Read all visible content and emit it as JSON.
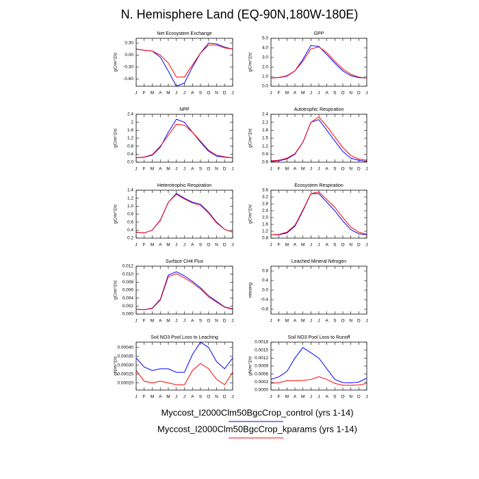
{
  "title": "N. Hemisphere Land (EQ-90N,180W-180E)",
  "chart_data": [
    {
      "type": "line",
      "title": "Net Ecosystem Exchange",
      "ylabel": "gC/m^2/d",
      "categories": [
        "J",
        "F",
        "M",
        "A",
        "M",
        "J",
        "J",
        "A",
        "S",
        "O",
        "N",
        "D",
        "J"
      ],
      "ylim": [
        -0.78,
        0.42
      ],
      "yticks": [
        {
          "value": 0.3,
          "label": "0.30"
        },
        {
          "value": 0,
          "label": "0.00"
        },
        {
          "value": -0.3,
          "label": "-0.30"
        },
        {
          "value": -0.6,
          "label": "-0.60"
        }
      ],
      "series": [
        {
          "name": "Myccost_I2000Clm50BgcCrop_control (yrs 1-14)",
          "color": "#0000ff",
          "values": [
            0.15,
            0.12,
            0.1,
            -0.05,
            -0.4,
            -0.78,
            -0.7,
            -0.3,
            0.05,
            0.3,
            0.28,
            0.2,
            0.15
          ]
        },
        {
          "name": "Myccost_I2000Clm50BgcCrop_kparams (yrs 1-14)",
          "color": "#ff0000",
          "values": [
            0.15,
            0.12,
            0.1,
            0,
            -0.2,
            -0.55,
            -0.55,
            -0.25,
            0.05,
            0.25,
            0.25,
            0.18,
            0.15
          ]
        }
      ]
    },
    {
      "type": "line",
      "title": "GPP",
      "ylabel": "gC/m^2/d",
      "categories": [
        "J",
        "F",
        "M",
        "A",
        "M",
        "J",
        "J",
        "A",
        "S",
        "O",
        "N",
        "D",
        "J"
      ],
      "ylim": [
        0,
        5
      ],
      "yticks": [
        {
          "value": 0,
          "label": "0.0"
        },
        {
          "value": 1,
          "label": "1.0"
        },
        {
          "value": 2,
          "label": "2.0"
        },
        {
          "value": 3,
          "label": "3.0"
        },
        {
          "value": 4,
          "label": "4.0"
        },
        {
          "value": 5,
          "label": "5.0"
        }
      ],
      "series": [
        {
          "name": "Myccost_I2000Clm50BgcCrop_control (yrs 1-14)",
          "color": "#0000ff",
          "values": [
            0.85,
            0.9,
            1.05,
            1.6,
            2.8,
            4.25,
            4.15,
            3.3,
            2.4,
            1.6,
            1.1,
            0.9,
            0.85
          ]
        },
        {
          "name": "Myccost_I2000Clm50BgcCrop_kparams (yrs 1-14)",
          "color": "#ff0000",
          "values": [
            0.85,
            0.92,
            1.1,
            1.6,
            2.6,
            3.9,
            4.1,
            3.5,
            2.6,
            1.8,
            1.25,
            0.95,
            0.85
          ]
        }
      ]
    },
    {
      "type": "line",
      "title": "NPP",
      "ylabel": "gC/m^2/d",
      "categories": [
        "J",
        "F",
        "M",
        "A",
        "M",
        "J",
        "J",
        "A",
        "S",
        "O",
        "N",
        "D",
        "J"
      ],
      "ylim": [
        0,
        2.4
      ],
      "yticks": [
        {
          "value": 0,
          "label": "0.0"
        },
        0.4,
        0.8,
        1.2,
        1.6,
        2,
        {
          "value": 2.4,
          "label": "2.4"
        }
      ],
      "series": [
        {
          "name": "Myccost_I2000Clm50BgcCrop_control (yrs 1-14)",
          "color": "#0000ff",
          "values": [
            0.22,
            0.25,
            0.35,
            0.75,
            1.5,
            2.15,
            2.0,
            1.5,
            1.0,
            0.55,
            0.3,
            0.25,
            0.22
          ]
        },
        {
          "name": "Myccost_I2000Clm50BgcCrop_kparams (yrs 1-14)",
          "color": "#ff0000",
          "values": [
            0.22,
            0.26,
            0.38,
            0.8,
            1.35,
            1.9,
            1.85,
            1.5,
            1.05,
            0.6,
            0.35,
            0.27,
            0.22
          ]
        }
      ]
    },
    {
      "type": "line",
      "title": "Autotrophic Respiration",
      "ylabel": "gC/m^2/d",
      "categories": [
        "J",
        "F",
        "M",
        "A",
        "M",
        "J",
        "J",
        "A",
        "S",
        "O",
        "N",
        "D",
        "J"
      ],
      "ylim": [
        0.6,
        2.4
      ],
      "yticks": [
        0.6,
        0.9,
        1.2,
        1.5,
        1.8,
        2.1,
        2.4
      ],
      "series": [
        {
          "name": "Myccost_I2000Clm50BgcCrop_control (yrs 1-14)",
          "color": "#0000ff",
          "values": [
            0.63,
            0.65,
            0.72,
            0.9,
            1.35,
            2.1,
            2.2,
            1.8,
            1.4,
            1.0,
            0.75,
            0.67,
            0.63
          ]
        },
        {
          "name": "Myccost_I2000Clm50BgcCrop_kparams (yrs 1-14)",
          "color": "#ff0000",
          "values": [
            0.65,
            0.67,
            0.75,
            0.92,
            1.35,
            2.1,
            2.3,
            1.95,
            1.55,
            1.15,
            0.85,
            0.72,
            0.67
          ]
        }
      ]
    },
    {
      "type": "line",
      "title": "Heterotrophic Respiration",
      "ylabel": "gC/m^2/d",
      "categories": [
        "J",
        "F",
        "M",
        "A",
        "M",
        "J",
        "J",
        "A",
        "S",
        "O",
        "N",
        "D",
        "J"
      ],
      "ylim": [
        0.2,
        1.4
      ],
      "yticks": [
        0.2,
        0.4,
        0.6,
        0.8,
        {
          "value": 1,
          "label": "1.0"
        },
        1.2,
        1.4
      ],
      "series": [
        {
          "name": "Myccost_I2000Clm50BgcCrop_control (yrs 1-14)",
          "color": "#0000ff",
          "values": [
            0.35,
            0.33,
            0.4,
            0.65,
            1.1,
            1.32,
            1.2,
            1.1,
            1.05,
            0.85,
            0.6,
            0.42,
            0.35
          ]
        },
        {
          "name": "Myccost_I2000Clm50BgcCrop_kparams (yrs 1-14)",
          "color": "#ff0000",
          "values": [
            0.35,
            0.33,
            0.4,
            0.64,
            1.1,
            1.3,
            1.18,
            1.08,
            1.02,
            0.83,
            0.58,
            0.42,
            0.35
          ]
        }
      ]
    },
    {
      "type": "line",
      "title": "Ecosystem Respiration",
      "ylabel": "gC/m^2/d",
      "categories": [
        "J",
        "F",
        "M",
        "A",
        "M",
        "J",
        "J",
        "A",
        "S",
        "O",
        "N",
        "D",
        "J"
      ],
      "ylim": [
        0.8,
        3.6
      ],
      "yticks": [
        0.8,
        1.2,
        1.6,
        {
          "value": 2,
          "label": "2.0"
        },
        2.4,
        2.8,
        3.2,
        3.6
      ],
      "series": [
        {
          "name": "Myccost_I2000Clm50BgcCrop_control (yrs 1-14)",
          "color": "#0000ff",
          "values": [
            1.0,
            1.0,
            1.1,
            1.5,
            2.4,
            3.4,
            3.4,
            2.9,
            2.4,
            1.8,
            1.3,
            1.05,
            1.0
          ]
        },
        {
          "name": "Myccost_I2000Clm50BgcCrop_kparams (yrs 1-14)",
          "color": "#ff0000",
          "values": [
            1.0,
            1.02,
            1.15,
            1.55,
            2.45,
            3.4,
            3.5,
            3.05,
            2.6,
            2.0,
            1.45,
            1.15,
            1.02
          ]
        }
      ]
    },
    {
      "type": "line",
      "title": "Surface CH4 Flux",
      "ylabel": "gC/m^2/d",
      "categories": [
        "J",
        "F",
        "M",
        "A",
        "M",
        "J",
        "J",
        "A",
        "S",
        "O",
        "N",
        "D",
        "J"
      ],
      "ylim": [
        0,
        0.012
      ],
      "yticks": [
        {
          "value": 0,
          "label": "0.000"
        },
        {
          "value": 0.002,
          "label": "0.002"
        },
        {
          "value": 0.004,
          "label": "0.004"
        },
        {
          "value": 0.006,
          "label": "0.006"
        },
        {
          "value": 0.008,
          "label": "0.008"
        },
        {
          "value": 0.01,
          "label": "0.010"
        },
        {
          "value": 0.012,
          "label": "0.012"
        }
      ],
      "series": [
        {
          "name": "Myccost_I2000Clm50BgcCrop_control (yrs 1-14)",
          "color": "#0000ff",
          "values": [
            0.0012,
            0.0011,
            0.0015,
            0.0037,
            0.0098,
            0.0106,
            0.0096,
            0.0082,
            0.0066,
            0.0046,
            0.0032,
            0.0018,
            0.0013
          ]
        },
        {
          "name": "Myccost_I2000Clm50BgcCrop_kparams (yrs 1-14)",
          "color": "#ff0000",
          "values": [
            0.0012,
            0.0011,
            0.0014,
            0.0035,
            0.0094,
            0.0101,
            0.0091,
            0.0078,
            0.0063,
            0.0043,
            0.003,
            0.0017,
            0.0012
          ]
        }
      ]
    },
    {
      "type": "line",
      "title": "Leached Mineral Nitrogen",
      "ylabel": "missing",
      "categories": [
        "J",
        "F",
        "M",
        "A",
        "M",
        "J",
        "J",
        "A",
        "S",
        "O",
        "N",
        "D",
        "J"
      ],
      "ylim": [
        -1,
        1
      ],
      "yticks": [
        0.8,
        0.4,
        {
          "value": 0,
          "label": "0.0"
        },
        -0.4,
        -0.8
      ],
      "series": []
    },
    {
      "type": "line",
      "title": "Soil NO3 Pool Loss to Leaching",
      "ylabel": "gN/m^2/d",
      "categories": [
        "J",
        "F",
        "M",
        "A",
        "M",
        "J",
        "J",
        "A",
        "S",
        "O",
        "N",
        "D",
        "J"
      ],
      "ylim": [
        0.00016,
        0.00043
      ],
      "yticks": [
        {
          "value": 0.0002,
          "label": "0.00020"
        },
        {
          "value": 0.00025,
          "label": "0.00025"
        },
        {
          "value": 0.0003,
          "label": "0.00030"
        },
        {
          "value": 0.00035,
          "label": "0.00035"
        },
        {
          "value": 0.0004,
          "label": "0.00040"
        }
      ],
      "series": [
        {
          "name": "Myccost_I2000Clm50BgcCrop_control (yrs 1-14)",
          "color": "#0000ff",
          "values": [
            0.00034,
            0.00029,
            0.00027,
            0.00028,
            0.00028,
            0.00026,
            0.00026,
            0.00036,
            0.00043,
            0.0004,
            0.00032,
            0.00028,
            0.00034
          ]
        },
        {
          "name": "Myccost_I2000Clm50BgcCrop_kparams (yrs 1-14)",
          "color": "#ff0000",
          "values": [
            0.00027,
            0.00021,
            0.0002,
            0.00021,
            0.0002,
            0.00019,
            0.00019,
            0.00027,
            0.00031,
            0.00028,
            0.00022,
            0.00019,
            0.00026
          ]
        }
      ]
    },
    {
      "type": "line",
      "title": "Soil NO3 Pool Loss to Runoff",
      "ylabel": "gN/m^2/d",
      "categories": [
        "J",
        "F",
        "M",
        "A",
        "M",
        "J",
        "J",
        "A",
        "S",
        "O",
        "N",
        "D",
        "J"
      ],
      "ylim": [
        0,
        0.0018
      ],
      "yticks": [
        {
          "value": 0,
          "label": "0.0000"
        },
        {
          "value": 0.0003,
          "label": "0.0003"
        },
        {
          "value": 0.0006,
          "label": "0.0006"
        },
        {
          "value": 0.0009,
          "label": "0.0009"
        },
        {
          "value": 0.0012,
          "label": "0.0012"
        },
        {
          "value": 0.0015,
          "label": "0.0015"
        },
        {
          "value": 0.0018,
          "label": "0.0018"
        }
      ],
      "series": [
        {
          "name": "Myccost_I2000Clm50BgcCrop_control (yrs 1-14)",
          "color": "#0000ff",
          "values": [
            0.0004,
            0.0005,
            0.0007,
            0.0012,
            0.0016,
            0.0014,
            0.0012,
            0.0008,
            0.0004,
            0.00028,
            0.00027,
            0.0003,
            0.00045
          ]
        },
        {
          "name": "Myccost_I2000Clm50BgcCrop_kparams (yrs 1-14)",
          "color": "#ff0000",
          "values": [
            0.00025,
            0.00028,
            0.00035,
            0.00035,
            0.00036,
            0.0004,
            0.0005,
            0.0004,
            0.00025,
            0.00018,
            0.00018,
            0.00019,
            0.00025
          ]
        }
      ]
    }
  ]
}
